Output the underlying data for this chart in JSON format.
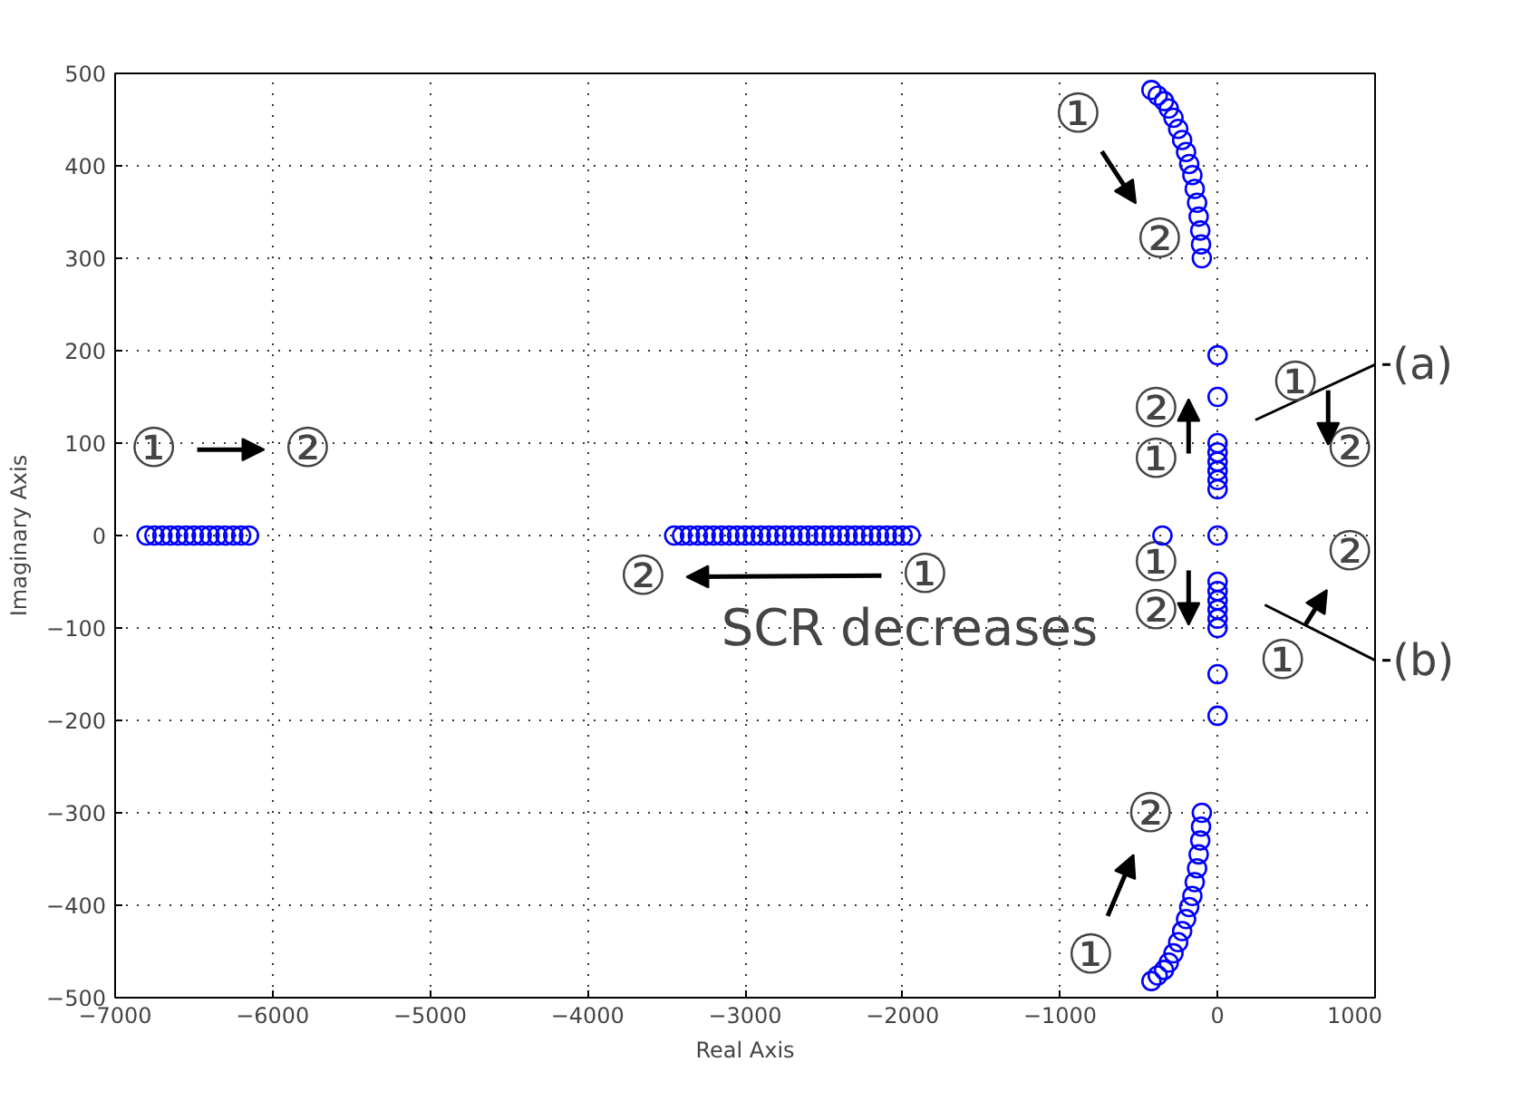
{
  "chart_data": {
    "type": "scatter",
    "xlabel": "Real Axis",
    "ylabel": "Imaginary Axis",
    "xlim": [
      -7000,
      1000
    ],
    "ylim": [
      -500,
      500
    ],
    "xticks": [
      -7000,
      -6000,
      -5000,
      -4000,
      -3000,
      -2000,
      -1000,
      0,
      1000
    ],
    "yticks": [
      -500,
      -400,
      -300,
      -200,
      -100,
      0,
      100,
      200,
      300,
      400,
      500
    ],
    "grid": true,
    "marker": "circle",
    "series": [
      {
        "color": "#0000ff",
        "x": [
          -6800,
          -6750,
          -6700,
          -6650,
          -6600,
          -6550,
          -6500,
          -6450,
          -6400,
          -6350,
          -6300,
          -6250,
          -6200,
          -6150,
          -3450,
          -3400,
          -3350,
          -3300,
          -3250,
          -3200,
          -3150,
          -3100,
          -3050,
          -3000,
          -2950,
          -2900,
          -2850,
          -2800,
          -2750,
          -2700,
          -2650,
          -2600,
          -2550,
          -2500,
          -2450,
          -2400,
          -2350,
          -2300,
          -2250,
          -2200,
          -2150,
          -2100,
          -2050,
          -2000,
          -1950,
          -100,
          -105,
          -110,
          -120,
          -130,
          -145,
          -160,
          -180,
          -200,
          -225,
          -250,
          -280,
          -310,
          -340,
          -380,
          -420,
          -100,
          -105,
          -110,
          -120,
          -130,
          -145,
          -160,
          -180,
          -200,
          -225,
          -250,
          -280,
          -310,
          -340,
          -380,
          -420,
          0,
          0,
          0,
          0,
          0,
          0,
          0,
          0,
          0,
          -350,
          0,
          0,
          0,
          0,
          0,
          0,
          0,
          0
        ],
        "values": [
          0,
          0,
          0,
          0,
          0,
          0,
          0,
          0,
          0,
          0,
          0,
          0,
          0,
          0,
          0,
          0,
          0,
          0,
          0,
          0,
          0,
          0,
          0,
          0,
          0,
          0,
          0,
          0,
          0,
          0,
          0,
          0,
          0,
          0,
          0,
          0,
          0,
          0,
          0,
          0,
          0,
          0,
          0,
          0,
          0,
          300,
          315,
          330,
          345,
          360,
          375,
          390,
          402,
          415,
          428,
          440,
          452,
          462,
          470,
          476,
          482,
          -300,
          -315,
          -330,
          -345,
          -360,
          -375,
          -390,
          -402,
          -415,
          -428,
          -440,
          -452,
          -462,
          -470,
          -476,
          -482,
          195,
          150,
          100,
          90,
          80,
          70,
          60,
          50,
          0,
          0,
          -50,
          -60,
          -70,
          -80,
          -90,
          -100,
          -150,
          -195
        ]
      }
    ],
    "annotations": [
      "①",
      "②",
      {
        "text": "①",
        "x": -1950,
        "y": 0
      },
      "②",
      "①",
      "②",
      "①",
      "②",
      "①",
      "②",
      "①",
      "②",
      "①",
      "②",
      "①",
      "②",
      "SCR decreases",
      "(a)",
      "(b)"
    ]
  }
}
